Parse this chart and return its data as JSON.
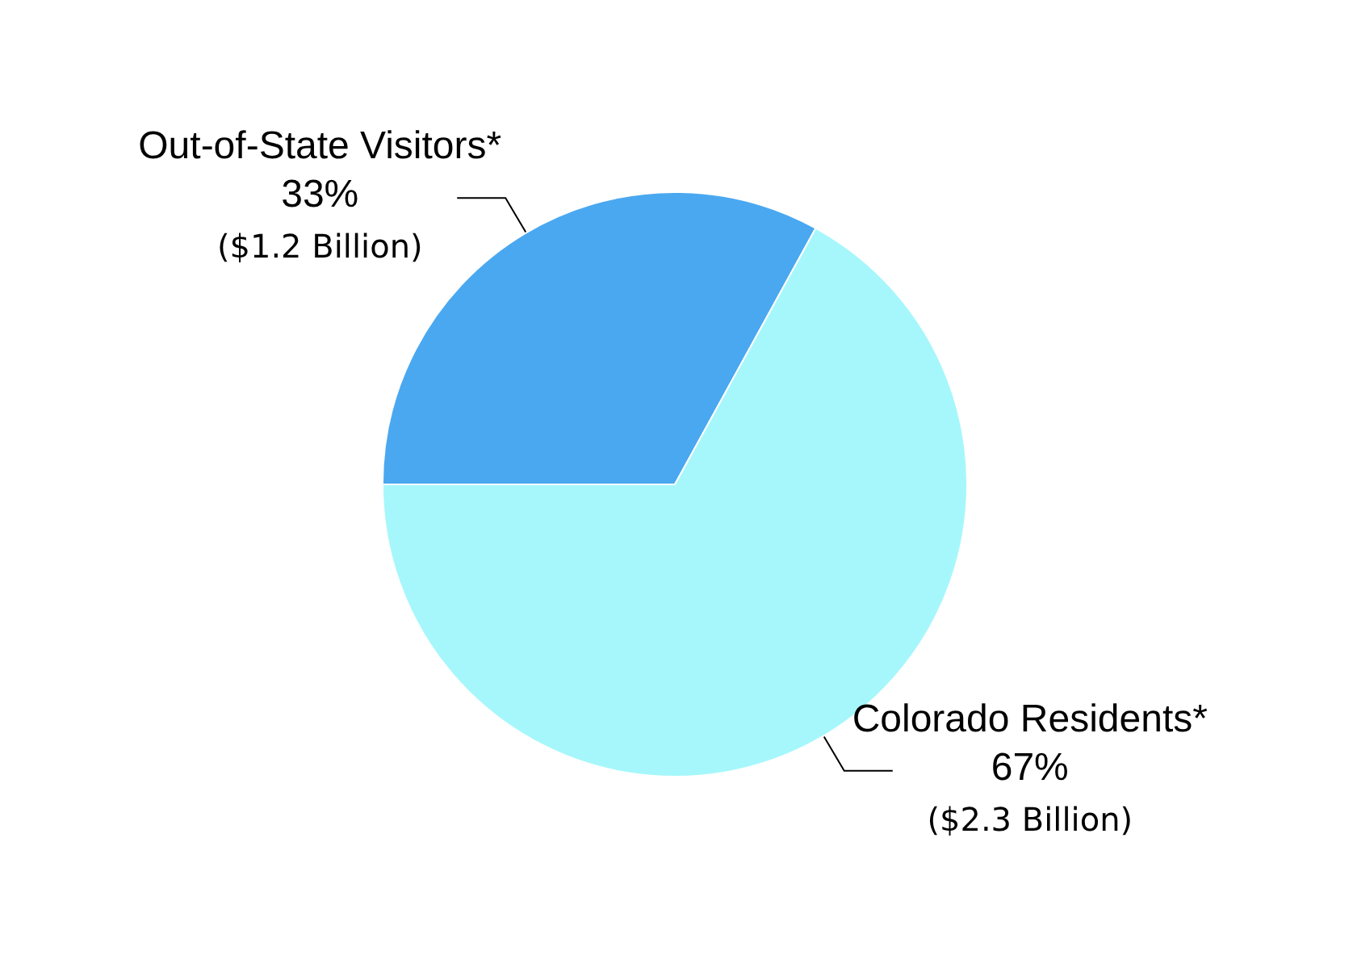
{
  "chart_data": {
    "type": "pie",
    "categories": [
      "Out-of-State Visitors*",
      "Colorado Residents*"
    ],
    "values": [
      33,
      67
    ],
    "colors": [
      "#4aa8f0",
      "#a6f7fb"
    ],
    "value_labels": [
      "33%",
      "67%"
    ],
    "annotations": [
      {
        "text": "($1.2 Billion)",
        "x": "Out-of-State Visitors*"
      },
      {
        "text": "($2.3 Billion)",
        "x": "Colorado Residents*"
      }
    ]
  }
}
